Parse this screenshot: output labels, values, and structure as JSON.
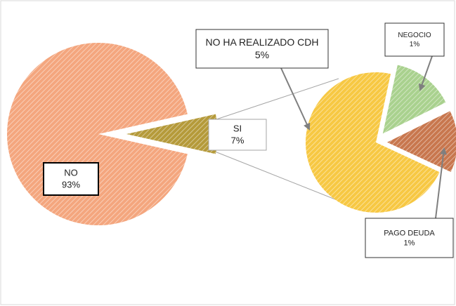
{
  "chart_data": [
    {
      "type": "pie",
      "categories": [
        "NO",
        "SI"
      ],
      "values": [
        93,
        7
      ],
      "value_labels": [
        "93%",
        "7%"
      ],
      "colors": [
        "#f4a67e",
        "#b59a3a"
      ]
    },
    {
      "type": "pie",
      "categories": [
        "NO HA REALIZADO CDH",
        "NEGOCIO",
        "PAGO DEUDA"
      ],
      "values": [
        5,
        1,
        1
      ],
      "value_labels": [
        "5%",
        "1%",
        "1%"
      ],
      "colors": [
        "#f7c843",
        "#a9d18e",
        "#c8774e"
      ]
    }
  ]
}
